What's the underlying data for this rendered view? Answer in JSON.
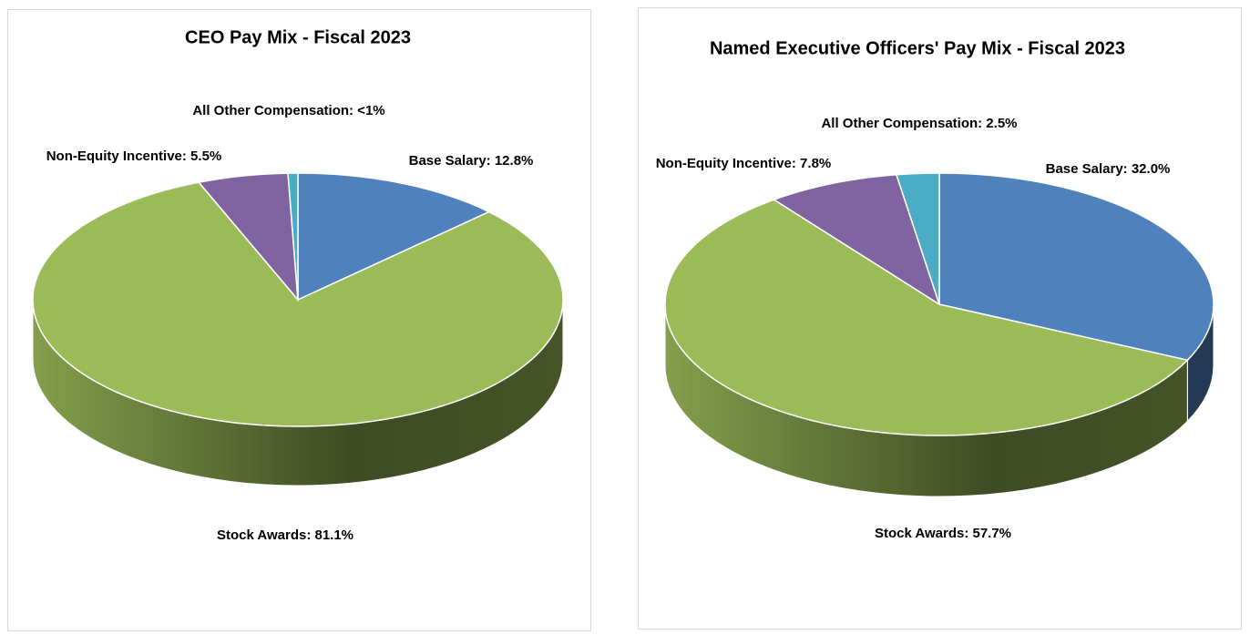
{
  "chart_data": [
    {
      "type": "pie3d",
      "title": "CEO Pay Mix - Fiscal 2023",
      "values": [
        12.8,
        81.1,
        5.5,
        0.6
      ],
      "value_labels": [
        "Base Salary: 12.8%",
        "Stock Awards: 81.1%",
        "Non-Equity Incentive: 5.5%",
        "All Other Compensation: <1%"
      ],
      "colors": [
        "#4f81bd",
        "#9bbb59",
        "#8064a2",
        "#4bacc6"
      ]
    },
    {
      "type": "pie3d",
      "title": "Named Executive Officers' Pay Mix - Fiscal 2023",
      "values": [
        32.0,
        57.7,
        7.8,
        2.5
      ],
      "value_labels": [
        "Base Salary: 32.0%",
        "Stock Awards: 57.7%",
        "Non-Equity Incentive: 7.8%",
        "All Other Compensation: 2.5%"
      ],
      "colors": [
        "#4f81bd",
        "#9bbb59",
        "#8064a2",
        "#4bacc6"
      ]
    }
  ]
}
